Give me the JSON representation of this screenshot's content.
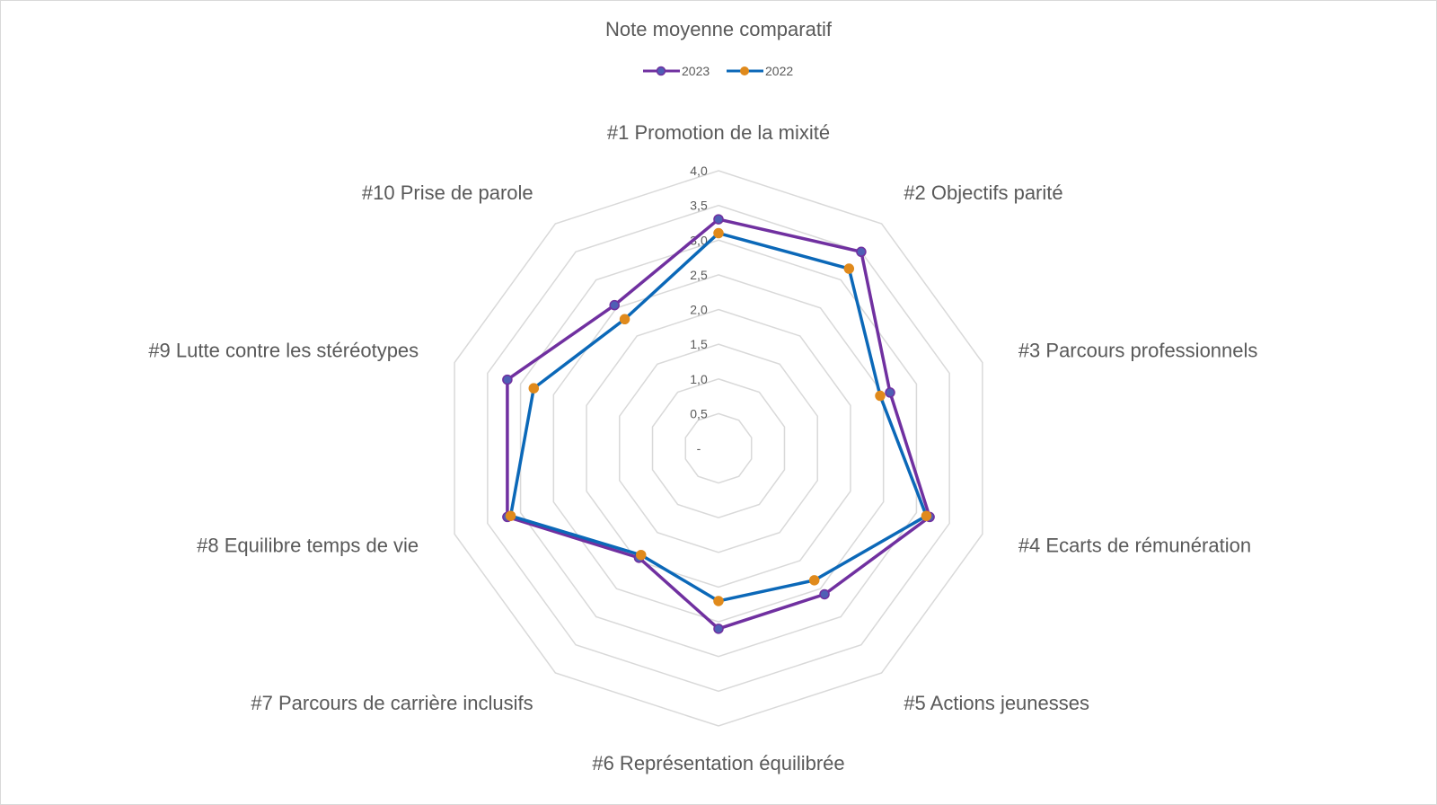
{
  "chart_data": {
    "type": "radar",
    "title": "Note moyenne comparatif",
    "categories": [
      "#1 Promotion de la mixité",
      "#2 Objectifs parité",
      "#3 Parcours professionnels",
      "#4 Ecarts de rémunération",
      "#5 Actions jeunesses",
      "#6 Représentation équilibrée",
      "#7 Parcours de carrière inclusifs",
      "#8 Equilibre temps de vie",
      "#9 Lutte contre les stéréotypes",
      "#10 Prise de parole"
    ],
    "radial_ticks": [
      "-",
      "0,5",
      "1,0",
      "1,5",
      "2,0",
      "2,5",
      "3,0",
      "3,5",
      "4,0"
    ],
    "rlim": [
      0,
      4
    ],
    "grid": true,
    "legend_position": "top",
    "series": [
      {
        "name": "2023",
        "color": "#7030a0",
        "marker_color": "#4f5fb5",
        "values": [
          3.3,
          3.5,
          2.6,
          3.2,
          2.6,
          2.6,
          1.95,
          3.2,
          3.2,
          2.55
        ]
      },
      {
        "name": "2022",
        "color": "#0b68b8",
        "marker_color": "#e08a1c",
        "values": [
          3.1,
          3.2,
          2.45,
          3.15,
          2.35,
          2.2,
          1.9,
          3.15,
          2.8,
          2.3
        ]
      }
    ]
  }
}
